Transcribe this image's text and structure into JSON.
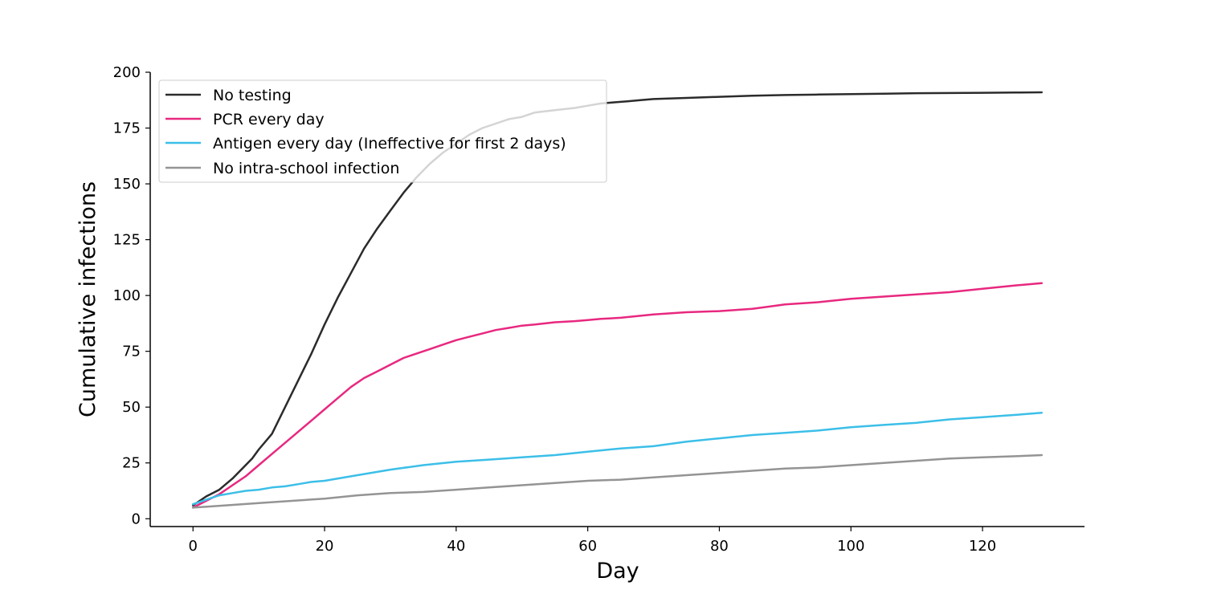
{
  "chart_data": {
    "type": "line",
    "title": "",
    "xlabel": "Day",
    "ylabel": "Cumulative infections",
    "xlim": [
      -6.5,
      135.5
    ],
    "ylim": [
      -3.5,
      200
    ],
    "xticks": [
      0,
      20,
      40,
      60,
      80,
      100,
      120
    ],
    "yticks": [
      0,
      25,
      50,
      75,
      100,
      125,
      150,
      175,
      200
    ],
    "grid": false,
    "legend_position": "top-left",
    "series": [
      {
        "name": "No testing",
        "color": "#2b2b2b",
        "x": [
          0,
          2,
          4,
          6,
          8,
          9,
          10,
          12,
          14,
          16,
          18,
          20,
          22,
          24,
          26,
          28,
          30,
          32,
          34,
          36,
          38,
          40,
          42,
          44,
          46,
          48,
          50,
          52,
          55,
          58,
          60,
          62,
          64,
          66,
          68,
          70,
          75,
          80,
          85,
          90,
          95,
          100,
          105,
          110,
          115,
          120,
          125,
          129
        ],
        "y": [
          6,
          10,
          13,
          18,
          24,
          27,
          31,
          38,
          50,
          62,
          74,
          87,
          99,
          110,
          121,
          130,
          138,
          146,
          153,
          159,
          164,
          168,
          172,
          175,
          177,
          179,
          180,
          182,
          183,
          184,
          185,
          186,
          186.5,
          187,
          187.5,
          188,
          188.5,
          189,
          189.5,
          189.8,
          190,
          190.2,
          190.4,
          190.6,
          190.7,
          190.8,
          190.9,
          191
        ]
      },
      {
        "name": "PCR every day",
        "color": "#e8287f",
        "x": [
          0,
          2,
          4,
          6,
          8,
          10,
          12,
          14,
          16,
          18,
          20,
          22,
          24,
          26,
          28,
          30,
          32,
          34,
          36,
          38,
          40,
          42,
          44,
          46,
          48,
          50,
          52,
          55,
          58,
          60,
          62,
          65,
          70,
          75,
          80,
          85,
          90,
          95,
          100,
          105,
          110,
          115,
          120,
          125,
          129
        ],
        "y": [
          5,
          8,
          11,
          15,
          19,
          24,
          29,
          34,
          39,
          44,
          49,
          54,
          59,
          63,
          66,
          69,
          72,
          74,
          76,
          78,
          80,
          81.5,
          83,
          84.5,
          85.5,
          86.5,
          87,
          88,
          88.5,
          89,
          89.5,
          90,
          91.5,
          92.5,
          93,
          94,
          96,
          97,
          98.5,
          99.5,
          100.5,
          101.5,
          103,
          104.5,
          105.5
        ]
      },
      {
        "name": "Antigen every day (Ineffective for first 2 days)",
        "color": "#3cbfe8",
        "x": [
          0,
          2,
          4,
          6,
          8,
          10,
          12,
          14,
          16,
          18,
          20,
          25,
          30,
          35,
          40,
          45,
          50,
          55,
          60,
          65,
          70,
          75,
          80,
          85,
          90,
          95,
          100,
          105,
          110,
          115,
          120,
          125,
          129
        ],
        "y": [
          6.5,
          8.5,
          10.5,
          11.5,
          12.5,
          13,
          14,
          14.5,
          15.5,
          16.5,
          17,
          19.5,
          22,
          24,
          25.5,
          26.5,
          27.5,
          28.5,
          30,
          31.5,
          32.5,
          34.5,
          36,
          37.5,
          38.5,
          39.5,
          41,
          42,
          43,
          44.5,
          45.5,
          46.5,
          47.5
        ]
      },
      {
        "name": "No intra-school infection",
        "color": "#949494",
        "x": [
          0,
          5,
          10,
          15,
          20,
          25,
          30,
          35,
          40,
          45,
          50,
          55,
          60,
          65,
          70,
          75,
          80,
          85,
          90,
          95,
          100,
          105,
          110,
          115,
          120,
          125,
          129
        ],
        "y": [
          5,
          6,
          7,
          8,
          9,
          10.5,
          11.5,
          12,
          13,
          14,
          15,
          16,
          17,
          17.5,
          18.5,
          19.5,
          20.5,
          21.5,
          22.5,
          23,
          24,
          25,
          26,
          27,
          27.5,
          28,
          28.5
        ]
      }
    ]
  }
}
